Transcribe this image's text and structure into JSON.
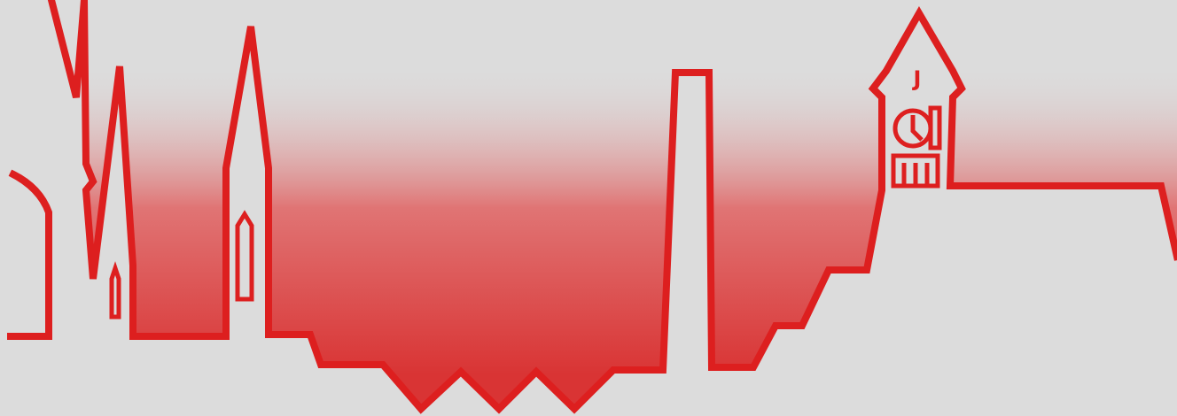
{
  "clock_tower": {
    "letter": "J"
  }
}
